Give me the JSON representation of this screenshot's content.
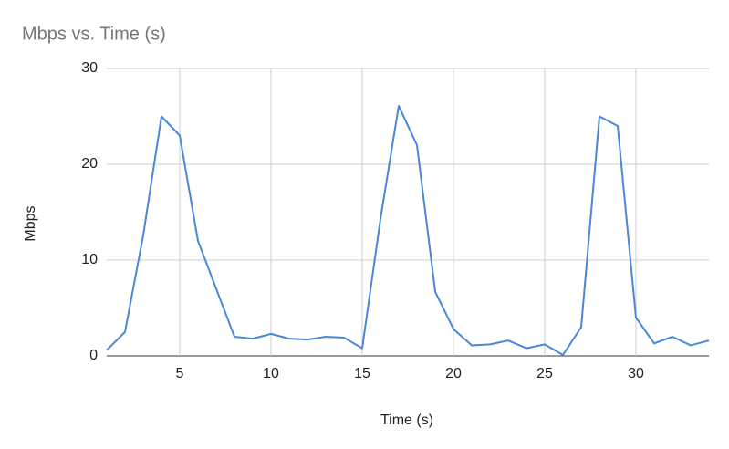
{
  "chart_data": {
    "type": "line",
    "title": "Mbps vs. Time (s)",
    "x_label": "Time (s)",
    "y_label": "Mbps",
    "x": [
      1,
      2,
      3,
      4,
      5,
      6,
      7,
      8,
      9,
      10,
      11,
      12,
      13,
      14,
      15,
      16,
      17,
      18,
      19,
      20,
      21,
      22,
      23,
      24,
      25,
      26,
      27,
      28,
      29,
      30,
      31,
      32,
      33,
      34
    ],
    "series": [
      {
        "name": "Mbps",
        "color": "#4a87d8",
        "values": [
          0.6,
          2.5,
          12.6,
          25,
          23,
          12,
          7,
          2.0,
          1.8,
          2.3,
          1.8,
          1.7,
          2.0,
          1.9,
          0.8,
          14.3,
          26.1,
          22,
          6.7,
          2.8,
          1.1,
          1.2,
          1.6,
          0.8,
          1.2,
          0.1,
          3.0,
          25,
          24,
          4.0,
          1.3,
          2.0,
          1.1,
          1.6
        ]
      }
    ],
    "xlim": [
      1,
      34
    ],
    "xticks": [
      5,
      10,
      15,
      20,
      25,
      30
    ],
    "ylim": [
      0,
      30
    ],
    "yticks": [
      0,
      10,
      20,
      30
    ],
    "grid": true
  }
}
